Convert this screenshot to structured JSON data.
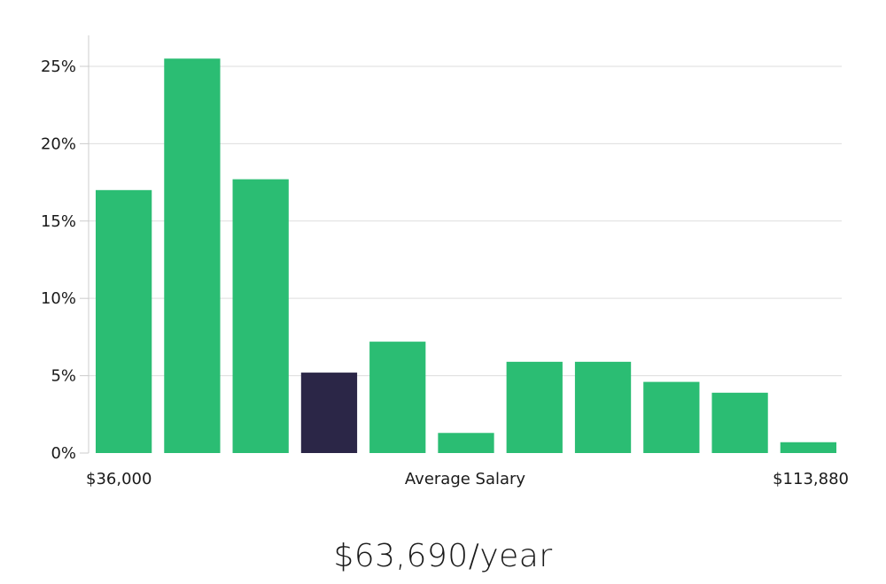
{
  "headline": "$63,690/year",
  "chart_data": {
    "type": "bar",
    "title": "",
    "xlabel": "Average Salary",
    "ylabel": "",
    "x_min_label": "$36,000",
    "x_max_label": "$113,880",
    "ylim": [
      0,
      27
    ],
    "yticks": [
      0,
      5,
      10,
      15,
      20,
      25
    ],
    "ytick_labels": [
      "0%",
      "5%",
      "10%",
      "15%",
      "20%",
      "25%"
    ],
    "grid": true,
    "values": [
      17.0,
      25.5,
      17.7,
      5.2,
      7.2,
      1.3,
      5.9,
      5.9,
      4.6,
      3.9,
      0.7
    ],
    "highlight_index": 3,
    "colors": {
      "bar": "#2bbd73",
      "highlight": "#2b2647",
      "grid": "#dddddd",
      "axis": "#cccccc",
      "text": "#1a1a1a"
    }
  }
}
